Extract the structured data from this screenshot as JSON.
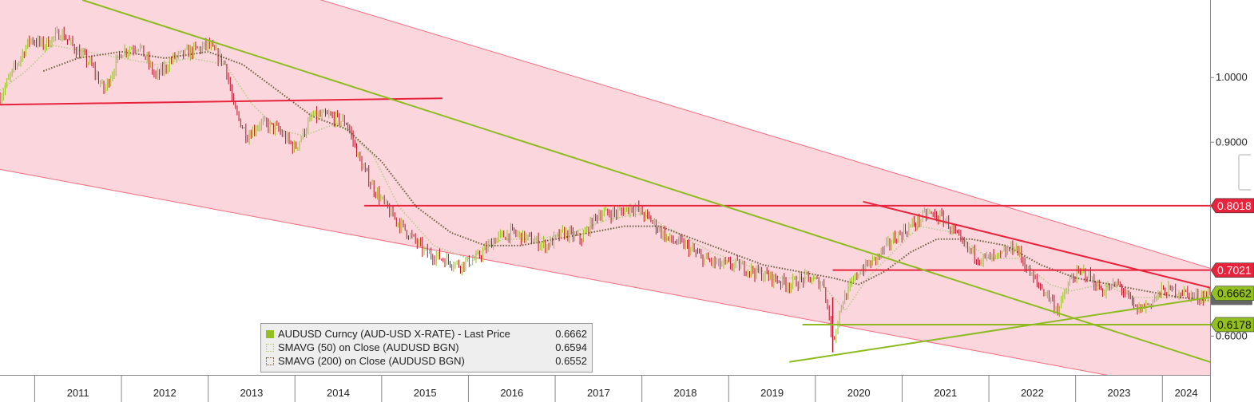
{
  "chart_data": {
    "type": "line",
    "instrument": "AUDUSD Curncy (AUD-USD X-RATE)",
    "years": [
      "2011",
      "2012",
      "2013",
      "2014",
      "2015",
      "2016",
      "2017",
      "2018",
      "2019",
      "2020",
      "2021",
      "2022",
      "2023",
      "2024"
    ],
    "y_ticks": [
      "0.6000",
      "0.9000",
      "1.0000"
    ],
    "y_tick_values": [
      0.6,
      0.9,
      1.0
    ],
    "ylim": [
      0.54,
      1.12
    ],
    "xlim": [
      2010.6,
      2024.55
    ],
    "grid": false,
    "legend_position": "bottom-left",
    "series": [
      {
        "name": "AUDUSD Curncy (AUD-USD X-RATE) - Last Price",
        "legend_value": "0.6662",
        "color": "#b8102a",
        "style": "candle",
        "x": [
          2010.6,
          2010.75,
          2010.95,
          2011.1,
          2011.3,
          2011.5,
          2011.65,
          2011.8,
          2012.0,
          2012.2,
          2012.4,
          2012.6,
          2012.8,
          2013.0,
          2013.2,
          2013.3,
          2013.45,
          2013.6,
          2013.8,
          2014.0,
          2014.2,
          2014.4,
          2014.6,
          2014.75,
          2014.9,
          2015.1,
          2015.3,
          2015.5,
          2015.7,
          2015.9,
          2016.1,
          2016.3,
          2016.5,
          2016.7,
          2016.9,
          2017.1,
          2017.3,
          2017.5,
          2017.7,
          2017.9,
          2018.1,
          2018.3,
          2018.5,
          2018.7,
          2018.9,
          2019.1,
          2019.3,
          2019.5,
          2019.7,
          2019.9,
          2020.1,
          2020.2,
          2020.3,
          2020.5,
          2020.7,
          2020.9,
          2021.1,
          2021.3,
          2021.5,
          2021.7,
          2021.9,
          2022.1,
          2022.3,
          2022.5,
          2022.7,
          2022.8,
          2022.95,
          2023.1,
          2023.3,
          2023.5,
          2023.7,
          2023.85,
          2024.0,
          2024.2,
          2024.4,
          2024.55
        ],
        "values": [
          0.97,
          1.01,
          1.06,
          1.05,
          1.07,
          1.04,
          1.02,
          0.98,
          1.04,
          1.05,
          1.0,
          1.03,
          1.04,
          1.05,
          1.02,
          0.95,
          0.91,
          0.93,
          0.92,
          0.89,
          0.94,
          0.94,
          0.93,
          0.87,
          0.83,
          0.79,
          0.76,
          0.73,
          0.72,
          0.71,
          0.72,
          0.75,
          0.76,
          0.75,
          0.74,
          0.76,
          0.75,
          0.79,
          0.79,
          0.8,
          0.78,
          0.75,
          0.74,
          0.72,
          0.71,
          0.71,
          0.7,
          0.69,
          0.68,
          0.69,
          0.68,
          0.59,
          0.65,
          0.7,
          0.72,
          0.75,
          0.77,
          0.79,
          0.78,
          0.74,
          0.72,
          0.72,
          0.74,
          0.69,
          0.66,
          0.64,
          0.69,
          0.7,
          0.67,
          0.68,
          0.64,
          0.65,
          0.67,
          0.67,
          0.66,
          0.666
        ]
      },
      {
        "name": "SMAVG (50)  on Close (AUDUSD BGN)",
        "legend_value": "0.6594",
        "color": "#b8c98a",
        "style": "dotted",
        "x": [
          2010.6,
          2010.9,
          2011.2,
          2011.6,
          2012.0,
          2012.4,
          2012.8,
          2013.2,
          2013.5,
          2013.8,
          2014.1,
          2014.5,
          2014.9,
          2015.2,
          2015.6,
          2016.0,
          2016.4,
          2016.8,
          2017.2,
          2017.6,
          2018.0,
          2018.4,
          2018.8,
          2019.2,
          2019.6,
          2020.0,
          2020.35,
          2020.6,
          2020.9,
          2021.2,
          2021.6,
          2022.0,
          2022.35,
          2022.7,
          2022.95,
          2023.3,
          2023.7,
          2024.1,
          2024.55
        ],
        "values": [
          0.98,
          1.01,
          1.05,
          1.04,
          1.03,
          1.02,
          1.03,
          1.02,
          0.96,
          0.92,
          0.91,
          0.93,
          0.88,
          0.8,
          0.74,
          0.72,
          0.75,
          0.75,
          0.76,
          0.78,
          0.79,
          0.76,
          0.73,
          0.71,
          0.69,
          0.69,
          0.64,
          0.69,
          0.73,
          0.77,
          0.76,
          0.72,
          0.72,
          0.68,
          0.67,
          0.68,
          0.66,
          0.66,
          0.659
        ]
      },
      {
        "name": "SMAVG (200)  on Close (AUDUSD BGN)",
        "legend_value": "0.6552",
        "color": "#6b5a3a",
        "style": "dotted",
        "x": [
          2011.1,
          2011.5,
          2012.0,
          2012.5,
          2013.0,
          2013.4,
          2013.8,
          2014.2,
          2014.6,
          2015.0,
          2015.4,
          2015.8,
          2016.2,
          2016.6,
          2017.0,
          2017.4,
          2017.8,
          2018.2,
          2018.6,
          2019.0,
          2019.4,
          2019.8,
          2020.2,
          2020.5,
          2020.8,
          2021.1,
          2021.4,
          2021.8,
          2022.2,
          2022.6,
          2023.0,
          2023.4,
          2023.8,
          2024.2,
          2024.55
        ],
        "values": [
          1.01,
          1.03,
          1.04,
          1.03,
          1.04,
          1.02,
          0.98,
          0.94,
          0.92,
          0.87,
          0.8,
          0.76,
          0.74,
          0.74,
          0.75,
          0.76,
          0.77,
          0.77,
          0.75,
          0.73,
          0.71,
          0.7,
          0.69,
          0.68,
          0.7,
          0.73,
          0.75,
          0.75,
          0.74,
          0.71,
          0.69,
          0.68,
          0.67,
          0.66,
          0.655
        ]
      }
    ],
    "price_tags": [
      {
        "label": "0.8018",
        "value": 0.8018,
        "color": "#e8233c",
        "text_color": "#ffffff"
      },
      {
        "label": "0.7021",
        "value": 0.7021,
        "color": "#e8233c",
        "text_color": "#ffffff"
      },
      {
        "label": "0.6662",
        "value": 0.6662,
        "color": "#93c020",
        "text_color": "#111111"
      },
      {
        "label": "0.6178",
        "value": 0.6178,
        "color": "#93c020",
        "text_color": "#111111"
      }
    ],
    "channel": {
      "color": "#fbd7dd",
      "border": "#f26a80",
      "upper": [
        [
          2010.6,
          1.27
        ],
        [
          2024.55,
          0.705
        ]
      ],
      "lower": [
        [
          2010.6,
          0.858
        ],
        [
          2024.55,
          0.51
        ]
      ]
    },
    "trendlines": [
      {
        "name": "red-horizontal-2011",
        "color": "#e8233c",
        "points": [
          [
            2010.6,
            0.958
          ],
          [
            2015.7,
            0.968
          ]
        ]
      },
      {
        "name": "red-0.8018-level",
        "color": "#e8233c",
        "points": [
          [
            2014.8,
            0.8018
          ],
          [
            2024.55,
            0.8018
          ]
        ]
      },
      {
        "name": "red-0.7021-level",
        "color": "#e8233c",
        "points": [
          [
            2020.2,
            0.7021
          ],
          [
            2024.55,
            0.7021
          ]
        ]
      },
      {
        "name": "red-falling-resistance",
        "color": "#e8233c",
        "points": [
          [
            2020.55,
            0.808
          ],
          [
            2024.55,
            0.675
          ]
        ]
      },
      {
        "name": "green-long-downtrend",
        "color": "#8dbb1f",
        "points": [
          [
            2011.55,
            1.12
          ],
          [
            2024.55,
            0.56
          ]
        ]
      },
      {
        "name": "green-0.6178-level",
        "color": "#8dbb1f",
        "points": [
          [
            2019.85,
            0.6178
          ],
          [
            2024.55,
            0.6178
          ]
        ]
      },
      {
        "name": "green-rising-support",
        "color": "#8dbb1f",
        "points": [
          [
            2019.7,
            0.56
          ],
          [
            2024.55,
            0.66
          ]
        ]
      }
    ]
  },
  "legend": {
    "items": [
      {
        "label": "AUDUSD Curncy (AUD-USD X-RATE) - Last Price",
        "value": "0.6662"
      },
      {
        "label": "SMAVG (50)  on Close (AUDUSD BGN)",
        "value": "0.6594"
      },
      {
        "label": "SMAVG (200)  on Close (AUDUSD BGN)",
        "value": "0.6552"
      }
    ]
  }
}
